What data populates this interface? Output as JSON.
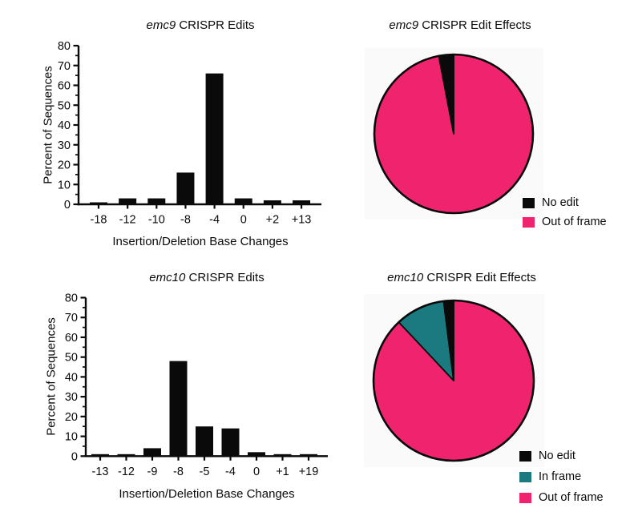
{
  "figure": {
    "background": "#ffffff",
    "axis_color": "#0a0a0a"
  },
  "colors": {
    "no_edit": "#0a0a0a",
    "in_frame": "#1b7a80",
    "out_of_frame": "#f0236e",
    "bar": "#0a0a0a"
  },
  "chart_data": [
    {
      "id": "emc9_edits",
      "type": "bar",
      "title": {
        "gene": "emc9",
        "rest": " CRISPR Edits"
      },
      "categories": [
        "-18",
        "-12",
        "-10",
        "-8",
        "-4",
        "0",
        "+2",
        "+13"
      ],
      "values": [
        1,
        3,
        3,
        16,
        66,
        3,
        2,
        2
      ],
      "xlabel": "Insertion/Deletion Base Changes",
      "ylabel": "Percent of Sequences",
      "ylim": [
        0,
        80
      ],
      "ytick_step": 10,
      "yminor_step": 5,
      "grid": false,
      "bar_color": "#0a0a0a"
    },
    {
      "id": "emc9_effects",
      "type": "pie",
      "title": {
        "gene": "emc9",
        "rest": " CRISPR Edit Effects"
      },
      "slices": [
        {
          "label": "No edit",
          "value": 3,
          "color": "#0a0a0a"
        },
        {
          "label": "Out of frame",
          "value": 97,
          "color": "#f0236e"
        }
      ],
      "legend_position": "bottom-right",
      "start_angle_deg": 0,
      "direction": "clockwise"
    },
    {
      "id": "emc10_edits",
      "type": "bar",
      "title": {
        "gene": "emc10",
        "rest": " CRISPR Edits"
      },
      "categories": [
        "-13",
        "-12",
        "-9",
        "-8",
        "-5",
        "-4",
        "0",
        "+1",
        "+19"
      ],
      "values": [
        1,
        1,
        4,
        48,
        15,
        14,
        2,
        1,
        1
      ],
      "xlabel": "Insertion/Deletion Base Changes",
      "ylabel": "Percent of Sequences",
      "ylim": [
        0,
        80
      ],
      "ytick_step": 10,
      "yminor_step": 5,
      "grid": false,
      "bar_color": "#0a0a0a"
    },
    {
      "id": "emc10_effects",
      "type": "pie",
      "title": {
        "gene": "emc10",
        "rest": " CRISPR Edit Effects"
      },
      "slices": [
        {
          "label": "No edit",
          "value": 2,
          "color": "#0a0a0a"
        },
        {
          "label": "In frame",
          "value": 10,
          "color": "#1b7a80"
        },
        {
          "label": "Out of frame",
          "value": 88,
          "color": "#f0236e"
        }
      ],
      "legend_position": "bottom-right",
      "start_angle_deg": 0,
      "direction": "clockwise"
    }
  ]
}
